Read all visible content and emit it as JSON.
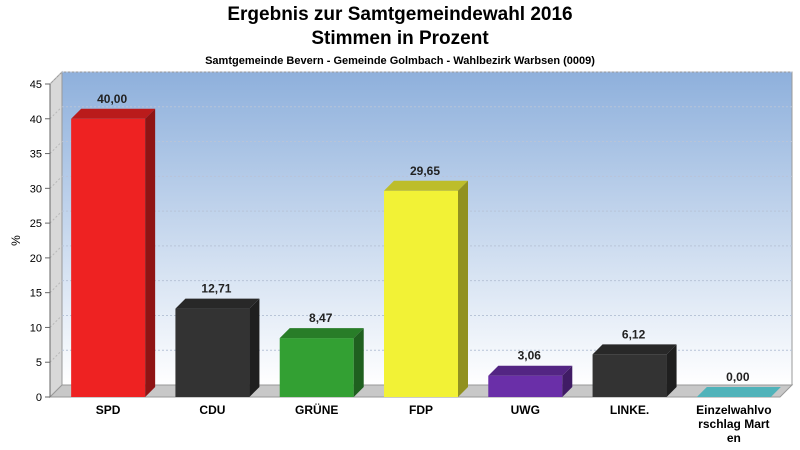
{
  "header": {
    "title": "Ergebnis zur Samtgemeindewahl 2016",
    "subtitle": "Stimmen in Prozent",
    "caption": "Samtgemeinde Bevern - Gemeinde Golmbach - Wahlbezirk Warbsen (0009)"
  },
  "chart_data": {
    "type": "bar",
    "title": "Ergebnis zur Samtgemeindewahl 2016",
    "subtitle": "Stimmen in Prozent",
    "xlabel": "",
    "ylabel": "%",
    "ylim": [
      0,
      45
    ],
    "yticks": [
      0,
      5,
      10,
      15,
      20,
      25,
      30,
      35,
      40,
      45
    ],
    "grid": true,
    "categories": [
      "SPD",
      "CDU",
      "GRÜNE",
      "FDP",
      "UWG",
      "LINKE.",
      "Einzelwahlvorschlag Marten"
    ],
    "category_label_lines": [
      [
        "SPD"
      ],
      [
        "CDU"
      ],
      [
        "GRÜNE"
      ],
      [
        "FDP"
      ],
      [
        "UWG"
      ],
      [
        "LINKE."
      ],
      [
        "Einzelwahlvo",
        "rschlag Mart",
        "en"
      ]
    ],
    "values": [
      40.0,
      12.71,
      8.47,
      29.65,
      3.06,
      6.12,
      0.0
    ],
    "value_labels": [
      "40,00",
      "12,71",
      "8,47",
      "29,65",
      "3,06",
      "6,12",
      "0,00"
    ],
    "colors": [
      "#ee2222",
      "#333333",
      "#33a033",
      "#f2f236",
      "#6a2fa8",
      "#333333",
      "#66e6ee"
    ]
  }
}
